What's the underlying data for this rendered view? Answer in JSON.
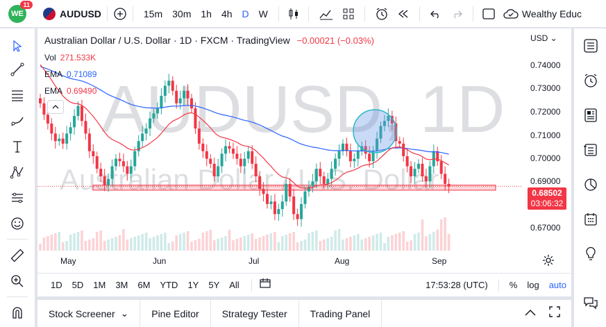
{
  "topbar": {
    "logo_text": "WE",
    "notification_count": "11",
    "symbol": "AUDUSD",
    "timeframes": [
      "15m",
      "30m",
      "1h",
      "4h",
      "D",
      "W"
    ],
    "active_timeframe": "D",
    "account": "Wealthy Educ"
  },
  "chart": {
    "title": "Australian Dollar / U.S. Dollar · 1D · FXCM · TradingView",
    "change": "−0.00021 (−0.03%)",
    "watermark_symbol": "AUDUSD, 1D",
    "watermark_name": "Australian Dollar / U.S. Dollar",
    "indicators": [
      {
        "name": "Vol",
        "value": "271.533K",
        "color": "#f23645"
      },
      {
        "name": "EMA",
        "value": "0.71089",
        "color": "#2962ff"
      },
      {
        "name": "EMA",
        "value": "0.69490",
        "color": "#f23645"
      }
    ],
    "currency": "USD",
    "price_labels": [
      "0.74000",
      "0.73000",
      "0.72000",
      "0.71000",
      "0.70000",
      "0.69000",
      "0.67000"
    ],
    "current_price": "0.68502",
    "countdown": "03:06:32",
    "time_labels": [
      "May",
      "Jun",
      "Jul",
      "Aug",
      "Sep"
    ]
  },
  "chart_data": {
    "type": "candlestick",
    "symbol": "AUDUSD",
    "interval": "1D",
    "ylim": [
      0.665,
      0.745
    ],
    "x_labels": [
      "May",
      "Jun",
      "Jul",
      "Aug",
      "Sep"
    ],
    "ema_blue_last": 0.71089,
    "ema_red_last": 0.6949,
    "last_price": 0.68502,
    "support_zone": [
      0.6835,
      0.6855
    ],
    "closes": [
      0.718,
      0.7135,
      0.71,
      0.706,
      0.703,
      0.704,
      0.702,
      0.706,
      0.7085,
      0.713,
      0.717,
      0.711,
      0.706,
      0.699,
      0.697,
      0.692,
      0.689,
      0.6855,
      0.688,
      0.693,
      0.696,
      0.695,
      0.693,
      0.69,
      0.693,
      0.699,
      0.703,
      0.706,
      0.708,
      0.712,
      0.714,
      0.716,
      0.721,
      0.725,
      0.727,
      0.723,
      0.718,
      0.72,
      0.723,
      0.72,
      0.716,
      0.708,
      0.702,
      0.699,
      0.696,
      0.694,
      0.689,
      0.693,
      0.698,
      0.701,
      0.7,
      0.698,
      0.696,
      0.693,
      0.696,
      0.699,
      0.694,
      0.689,
      0.684,
      0.682,
      0.678,
      0.679,
      0.674,
      0.676,
      0.679,
      0.686,
      0.681,
      0.674,
      0.672,
      0.678,
      0.683,
      0.685,
      0.687,
      0.692,
      0.689,
      0.686,
      0.688,
      0.692,
      0.696,
      0.699,
      0.702,
      0.699,
      0.695,
      0.696,
      0.699,
      0.701,
      0.698,
      0.695,
      0.699,
      0.704,
      0.709,
      0.711,
      0.713,
      0.71,
      0.703,
      0.702,
      0.697,
      0.693,
      0.689,
      0.692,
      0.694,
      0.689,
      0.687,
      0.693,
      0.699,
      0.695,
      0.69,
      0.686,
      0.685
    ]
  },
  "range": {
    "buttons": [
      "1D",
      "5D",
      "1M",
      "3M",
      "6M",
      "YTD",
      "1Y",
      "5Y",
      "All"
    ],
    "clock": "17:53:28 (UTC)",
    "percent": "%",
    "log": "log",
    "auto": "auto"
  },
  "bottom": {
    "tabs": [
      "Stock Screener",
      "Pine Editor",
      "Strategy Tester",
      "Trading Panel"
    ]
  },
  "colors": {
    "up": "#26a69a",
    "down": "#f23645",
    "accent": "#2962ff"
  }
}
